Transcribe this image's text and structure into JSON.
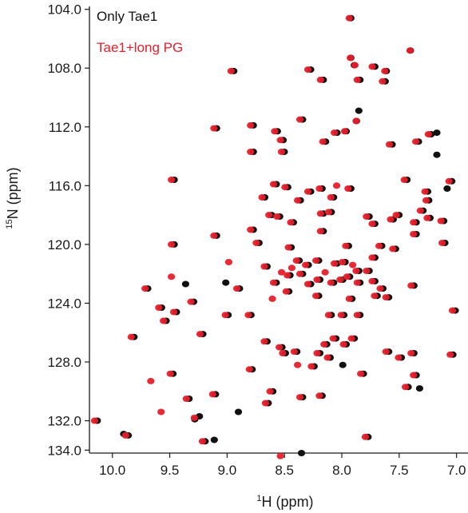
{
  "chart_data": {
    "type": "scatter",
    "xlabel_sup": "1",
    "xlabel_text": "H (ppm)",
    "ylabel_sup": "15",
    "ylabel_text": "N (ppm)",
    "xlim": [
      10.2,
      6.9
    ],
    "ylim": [
      134.2,
      103.8
    ],
    "x_ticks": [
      10.0,
      9.5,
      9.0,
      8.5,
      8.0,
      7.5,
      7.0
    ],
    "x_tick_labels": [
      "10.0",
      "9.5",
      "9.0",
      "8.5",
      "8.0",
      "7.5",
      "7.0"
    ],
    "y_ticks": [
      104.0,
      108.0,
      112.0,
      116.0,
      120.0,
      124.0,
      128.0,
      132.0,
      134.0
    ],
    "y_tick_labels": [
      "104.0",
      "108.0",
      "112.0",
      "116.0",
      "120.0",
      "124.0",
      "128.0",
      "132.0",
      "134.0"
    ],
    "y_axis_reversed": true,
    "x_axis_reversed": true,
    "grid": false,
    "legend_position": "top-left",
    "series": [
      {
        "name": "Only Tae1",
        "color": "#111111",
        "points": [
          [
            7.93,
            104.6
          ],
          [
            7.93,
            107.3
          ],
          [
            7.9,
            107.8
          ],
          [
            7.72,
            107.9
          ],
          [
            7.62,
            108.2
          ],
          [
            7.41,
            106.8
          ],
          [
            8.28,
            108.1
          ],
          [
            8.95,
            108.2
          ],
          [
            8.17,
            108.8
          ],
          [
            7.85,
            108.8
          ],
          [
            7.63,
            108.9
          ],
          [
            7.86,
            110.9
          ],
          [
            7.88,
            111.6
          ],
          [
            8.35,
            111.5
          ],
          [
            8.57,
            112.3
          ],
          [
            8.78,
            111.9
          ],
          [
            9.1,
            112.1
          ],
          [
            8.52,
            112.9
          ],
          [
            8.05,
            112.4
          ],
          [
            7.97,
            112.3
          ],
          [
            8.78,
            113.7
          ],
          [
            8.51,
            113.7
          ],
          [
            8.15,
            113.0
          ],
          [
            7.57,
            113.2
          ],
          [
            7.34,
            113.0
          ],
          [
            7.23,
            112.5
          ],
          [
            7.18,
            112.4
          ],
          [
            7.18,
            113.9
          ],
          [
            8.58,
            115.9
          ],
          [
            8.48,
            116.1
          ],
          [
            8.37,
            117.0
          ],
          [
            8.28,
            116.4
          ],
          [
            8.18,
            116.2
          ],
          [
            8.08,
            116.8
          ],
          [
            7.93,
            116.2
          ],
          [
            7.44,
            115.6
          ],
          [
            7.26,
            116.4
          ],
          [
            7.05,
            115.7
          ],
          [
            7.09,
            116.2
          ],
          [
            8.68,
            116.8
          ],
          [
            7.25,
            117.0
          ],
          [
            9.47,
            115.6
          ],
          [
            8.62,
            118.0
          ],
          [
            8.55,
            118.1
          ],
          [
            8.43,
            118.5
          ],
          [
            8.17,
            117.9
          ],
          [
            8.1,
            117.8
          ],
          [
            7.77,
            118.1
          ],
          [
            7.72,
            118.6
          ],
          [
            7.56,
            118.3
          ],
          [
            7.51,
            118.0
          ],
          [
            7.36,
            118.5
          ],
          [
            7.3,
            117.7
          ],
          [
            7.24,
            118.2
          ],
          [
            7.12,
            118.4
          ],
          [
            7.36,
            119.3
          ],
          [
            8.17,
            119.1
          ],
          [
            8.45,
            120.2
          ],
          [
            8.78,
            119.0
          ],
          [
            9.1,
            119.4
          ],
          [
            8.73,
            119.9
          ],
          [
            9.47,
            120.0
          ],
          [
            7.95,
            120.1
          ],
          [
            7.66,
            120.1
          ],
          [
            7.54,
            120.3
          ],
          [
            7.11,
            119.9
          ],
          [
            8.38,
            121.1
          ],
          [
            8.3,
            121.4
          ],
          [
            8.21,
            121.1
          ],
          [
            8.05,
            121.3
          ],
          [
            7.98,
            121.2
          ],
          [
            7.86,
            121.8
          ],
          [
            7.77,
            121.8
          ],
          [
            7.72,
            120.9
          ],
          [
            8.2,
            122.4
          ],
          [
            8.08,
            122.6
          ],
          [
            8.0,
            122.4
          ],
          [
            7.94,
            122.2
          ],
          [
            7.85,
            122.6
          ],
          [
            7.72,
            122.5
          ],
          [
            7.65,
            123.0
          ],
          [
            8.35,
            122.0
          ],
          [
            8.28,
            122.7
          ],
          [
            8.46,
            122.1
          ],
          [
            8.58,
            122.6
          ],
          [
            8.66,
            121.5
          ],
          [
            9.02,
            122.6
          ],
          [
            9.37,
            122.7
          ],
          [
            9.7,
            123.0
          ],
          [
            8.9,
            123.0
          ],
          [
            8.47,
            123.2
          ],
          [
            8.21,
            123.5
          ],
          [
            7.92,
            123.7
          ],
          [
            7.7,
            123.5
          ],
          [
            9.3,
            123.9
          ],
          [
            9.58,
            124.3
          ],
          [
            8.8,
            124.8
          ],
          [
            8.1,
            124.8
          ],
          [
            7.99,
            124.8
          ],
          [
            7.85,
            124.8
          ],
          [
            7.6,
            123.6
          ],
          [
            7.38,
            122.8
          ],
          [
            7.02,
            124.5
          ],
          [
            9.45,
            124.6
          ],
          [
            9.54,
            125.2
          ],
          [
            9.22,
            126.1
          ],
          [
            8.66,
            126.6
          ],
          [
            8.53,
            127.0
          ],
          [
            8.5,
            127.4
          ],
          [
            8.4,
            127.3
          ],
          [
            8.2,
            127.4
          ],
          [
            8.14,
            126.8
          ],
          [
            8.06,
            126.4
          ],
          [
            8.11,
            127.7
          ],
          [
            7.97,
            126.8
          ],
          [
            7.9,
            126.4
          ],
          [
            7.6,
            127.3
          ],
          [
            7.49,
            127.7
          ],
          [
            7.38,
            127.4
          ],
          [
            7.04,
            127.5
          ],
          [
            9.82,
            126.3
          ],
          [
            8.79,
            128.5
          ],
          [
            8.25,
            128.3
          ],
          [
            8.0,
            128.2
          ],
          [
            7.82,
            128.8
          ],
          [
            7.36,
            128.9
          ],
          [
            9.48,
            128.8
          ],
          [
            9.34,
            130.5
          ],
          [
            9.11,
            130.2
          ],
          [
            8.61,
            130.0
          ],
          [
            8.35,
            130.4
          ],
          [
            8.18,
            130.3
          ],
          [
            8.65,
            130.8
          ],
          [
            8.91,
            131.4
          ],
          [
            9.29,
            131.9
          ],
          [
            9.25,
            131.7
          ],
          [
            10.14,
            132.0
          ],
          [
            9.91,
            132.9
          ],
          [
            9.87,
            133.0
          ],
          [
            9.2,
            133.4
          ],
          [
            9.12,
            133.3
          ],
          [
            8.36,
            134.2
          ],
          [
            7.78,
            133.1
          ],
          [
            7.43,
            129.7
          ],
          [
            7.33,
            129.8
          ],
          [
            9.0,
            124.8
          ]
        ]
      },
      {
        "name": "Tae1+long PG",
        "color": "#e5202c",
        "points": [
          [
            7.93,
            104.6
          ],
          [
            7.92,
            107.3
          ],
          [
            7.88,
            107.8
          ],
          [
            7.73,
            107.9
          ],
          [
            7.62,
            108.2
          ],
          [
            7.4,
            106.8
          ],
          [
            8.29,
            108.1
          ],
          [
            8.96,
            108.2
          ],
          [
            8.18,
            108.8
          ],
          [
            7.86,
            108.8
          ],
          [
            7.64,
            108.9
          ],
          [
            7.87,
            111.6
          ],
          [
            8.36,
            111.5
          ],
          [
            8.58,
            112.3
          ],
          [
            8.79,
            111.9
          ],
          [
            9.11,
            112.1
          ],
          [
            8.53,
            112.9
          ],
          [
            8.06,
            112.4
          ],
          [
            7.97,
            112.3
          ],
          [
            8.79,
            113.7
          ],
          [
            8.52,
            113.7
          ],
          [
            8.16,
            113.0
          ],
          [
            7.58,
            113.2
          ],
          [
            7.35,
            113.0
          ],
          [
            7.24,
            112.5
          ],
          [
            8.59,
            115.9
          ],
          [
            8.49,
            116.1
          ],
          [
            8.38,
            117.0
          ],
          [
            8.29,
            116.4
          ],
          [
            8.19,
            116.2
          ],
          [
            8.09,
            116.8
          ],
          [
            7.94,
            116.2
          ],
          [
            7.45,
            115.6
          ],
          [
            7.27,
            116.4
          ],
          [
            7.06,
            115.7
          ],
          [
            8.69,
            116.8
          ],
          [
            7.26,
            117.0
          ],
          [
            9.48,
            115.6
          ],
          [
            8.04,
            116.0
          ],
          [
            8.63,
            118.0
          ],
          [
            8.56,
            118.1
          ],
          [
            8.44,
            118.5
          ],
          [
            8.18,
            117.9
          ],
          [
            8.11,
            117.8
          ],
          [
            7.78,
            118.1
          ],
          [
            7.73,
            118.6
          ],
          [
            7.57,
            118.3
          ],
          [
            7.52,
            118.0
          ],
          [
            7.37,
            118.5
          ],
          [
            7.31,
            117.7
          ],
          [
            7.25,
            118.2
          ],
          [
            7.13,
            118.4
          ],
          [
            7.37,
            119.3
          ],
          [
            8.18,
            119.1
          ],
          [
            8.46,
            120.2
          ],
          [
            8.79,
            119.0
          ],
          [
            9.11,
            119.4
          ],
          [
            8.74,
            119.9
          ],
          [
            9.48,
            120.0
          ],
          [
            7.96,
            120.1
          ],
          [
            7.67,
            120.1
          ],
          [
            7.55,
            120.3
          ],
          [
            7.12,
            119.9
          ],
          [
            8.39,
            121.1
          ],
          [
            8.31,
            121.4
          ],
          [
            8.22,
            121.1
          ],
          [
            8.06,
            121.3
          ],
          [
            7.99,
            121.2
          ],
          [
            7.87,
            121.8
          ],
          [
            7.78,
            121.8
          ],
          [
            7.73,
            120.9
          ],
          [
            8.21,
            122.4
          ],
          [
            8.09,
            122.6
          ],
          [
            8.01,
            122.4
          ],
          [
            7.95,
            122.2
          ],
          [
            7.86,
            122.6
          ],
          [
            7.73,
            122.5
          ],
          [
            7.66,
            123.0
          ],
          [
            8.36,
            122.0
          ],
          [
            8.29,
            122.7
          ],
          [
            8.47,
            122.1
          ],
          [
            8.59,
            122.6
          ],
          [
            8.67,
            121.5
          ],
          [
            8.43,
            121.6
          ],
          [
            8.52,
            121.9
          ],
          [
            7.9,
            121.4
          ],
          [
            8.14,
            121.9
          ],
          [
            9.48,
            122.2
          ],
          [
            9.71,
            123.0
          ],
          [
            8.91,
            123.0
          ],
          [
            8.48,
            123.2
          ],
          [
            8.22,
            123.5
          ],
          [
            7.93,
            123.7
          ],
          [
            7.71,
            123.5
          ],
          [
            9.31,
            123.9
          ],
          [
            9.59,
            124.3
          ],
          [
            8.81,
            124.8
          ],
          [
            8.11,
            124.8
          ],
          [
            8.0,
            124.8
          ],
          [
            7.86,
            124.8
          ],
          [
            7.61,
            123.6
          ],
          [
            7.39,
            122.8
          ],
          [
            7.03,
            124.5
          ],
          [
            9.46,
            124.6
          ],
          [
            9.55,
            125.2
          ],
          [
            8.6,
            123.7
          ],
          [
            9.23,
            126.1
          ],
          [
            8.67,
            126.6
          ],
          [
            8.54,
            127.0
          ],
          [
            8.51,
            127.4
          ],
          [
            8.41,
            127.3
          ],
          [
            8.21,
            127.4
          ],
          [
            8.15,
            126.8
          ],
          [
            8.07,
            126.4
          ],
          [
            8.12,
            127.7
          ],
          [
            7.98,
            126.8
          ],
          [
            7.91,
            126.4
          ],
          [
            7.61,
            127.3
          ],
          [
            7.5,
            127.7
          ],
          [
            7.39,
            127.4
          ],
          [
            7.05,
            127.5
          ],
          [
            9.83,
            126.3
          ],
          [
            8.8,
            128.5
          ],
          [
            8.26,
            128.3
          ],
          [
            8.38,
            128.2
          ],
          [
            7.83,
            128.8
          ],
          [
            7.37,
            128.9
          ],
          [
            9.49,
            128.8
          ],
          [
            9.66,
            129.3
          ],
          [
            9.35,
            130.5
          ],
          [
            9.12,
            130.2
          ],
          [
            8.62,
            130.0
          ],
          [
            8.36,
            130.4
          ],
          [
            8.19,
            130.3
          ],
          [
            8.66,
            130.8
          ],
          [
            9.57,
            131.4
          ],
          [
            9.28,
            131.8
          ],
          [
            10.15,
            132.0
          ],
          [
            9.88,
            133.0
          ],
          [
            9.21,
            133.4
          ],
          [
            8.53,
            134.4
          ],
          [
            7.79,
            133.1
          ],
          [
            7.44,
            129.7
          ],
          [
            9.01,
            124.8
          ],
          [
            8.98,
            121.2
          ]
        ]
      }
    ]
  }
}
